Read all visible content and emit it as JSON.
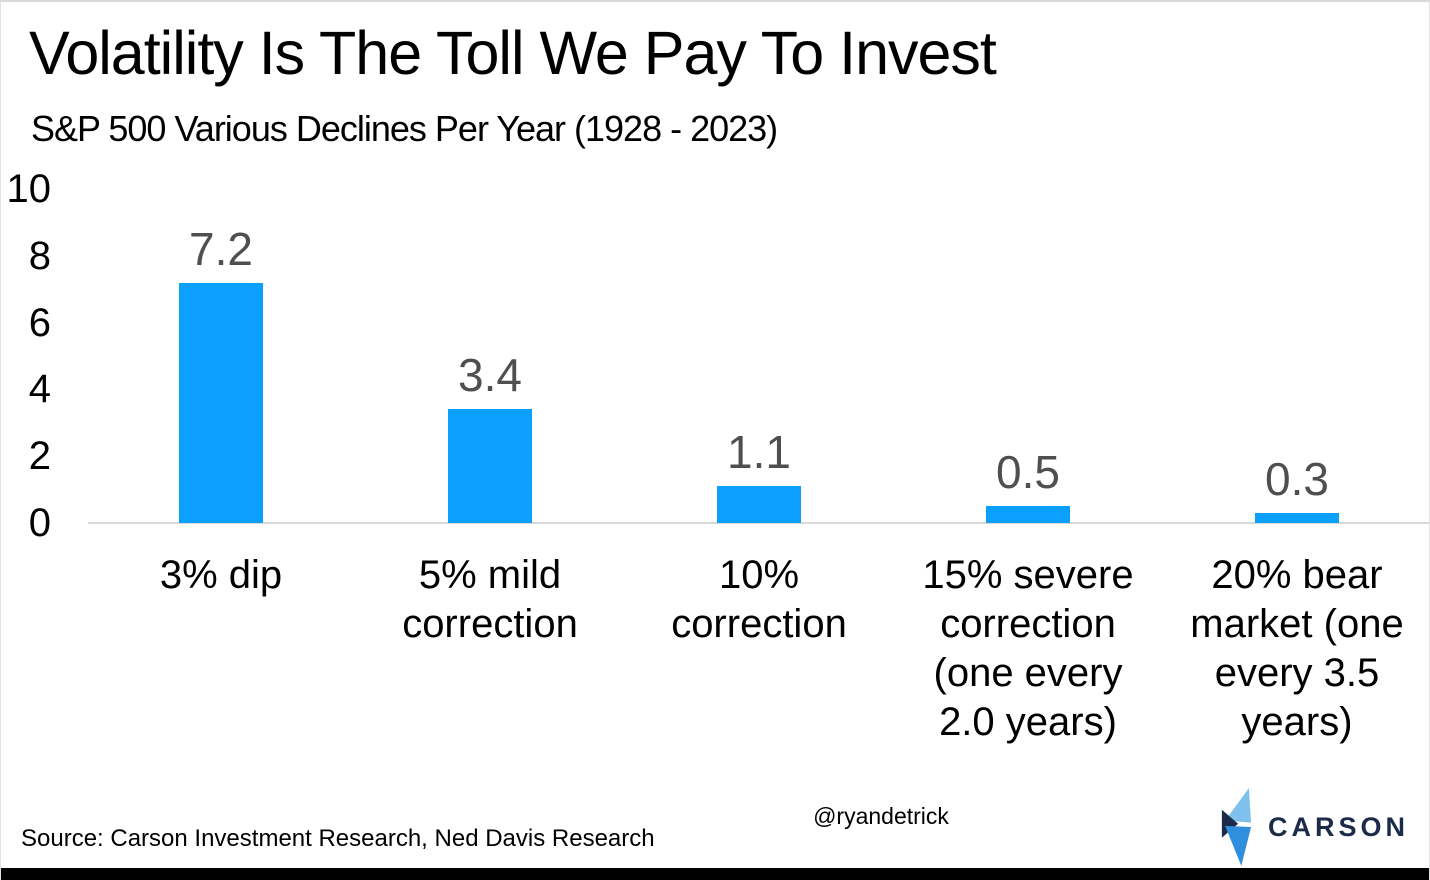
{
  "header": {
    "title": "Volatility Is The Toll We Pay To Invest",
    "subtitle": "S&P 500 Various Declines Per Year (1928 - 2023)"
  },
  "footer": {
    "source": "Source: Carson Investment Research, Ned Davis Research",
    "handle": "@ryandetrick",
    "brand_name": "CARSON"
  },
  "colors": {
    "bar": "#0AA0FC",
    "value_label": "#4F4F4F",
    "axis_line": "#D9D9D9",
    "brand_navy": "#1B2B49",
    "brand_light_blue": "#7EC1EC",
    "brand_mid_blue": "#2F8FDE",
    "bottom_border": "#000000"
  },
  "chart_data": {
    "type": "bar",
    "title": "Volatility Is The Toll We Pay To Invest",
    "subtitle": "S&P 500 Various Declines Per Year (1928 - 2023)",
    "categories": [
      "3% dip",
      "5% mild correction",
      "10% correction",
      "15% severe correction (one every 2.0 years)",
      "20% bear market (one every 3.5 years)"
    ],
    "category_lines": [
      [
        "3% dip"
      ],
      [
        "5% mild",
        "correction"
      ],
      [
        "10%",
        "correction"
      ],
      [
        "15% severe",
        "correction",
        "(one every",
        "2.0 years)"
      ],
      [
        "20% bear",
        "market (one",
        "every 3.5",
        "years)"
      ]
    ],
    "values": [
      7.2,
      3.4,
      1.1,
      0.5,
      0.3
    ],
    "value_labels": [
      "7.2",
      "3.4",
      "1.1",
      "0.5",
      "0.3"
    ],
    "yticks": [
      0,
      2,
      4,
      6,
      8,
      10
    ],
    "ylim": [
      0,
      10
    ],
    "xlabel": "",
    "ylabel": "",
    "grid": false,
    "legend": false,
    "bar_color": "#0AA0FC",
    "value_label_color": "#4F4F4F"
  }
}
